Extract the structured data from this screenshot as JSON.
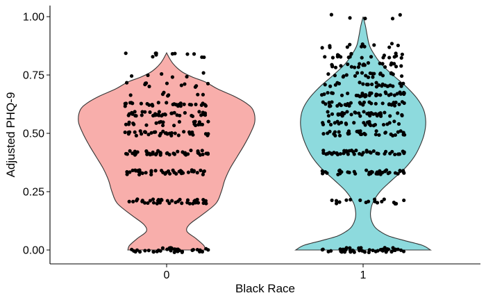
{
  "chart_data": {
    "type": "violin",
    "title": "",
    "xlabel": "Black Race",
    "ylabel": "Adjusted PHQ-9",
    "ylim": [
      0,
      1
    ],
    "yticks": [
      "0.00",
      "0.25",
      "0.50",
      "0.75",
      "1.00"
    ],
    "ytick_values": [
      0,
      0.25,
      0.5,
      0.75,
      1.0
    ],
    "grid": false,
    "legend": "none",
    "groups": [
      {
        "category": "0",
        "color": "#f8aeab",
        "y_max": 0.845,
        "width_profile": [
          [
            0.0,
            0.44
          ],
          [
            0.02,
            0.42
          ],
          [
            0.05,
            0.33
          ],
          [
            0.08,
            0.23
          ],
          [
            0.11,
            0.26
          ],
          [
            0.15,
            0.4
          ],
          [
            0.2,
            0.56
          ],
          [
            0.25,
            0.62
          ],
          [
            0.3,
            0.66
          ],
          [
            0.35,
            0.72
          ],
          [
            0.4,
            0.8
          ],
          [
            0.45,
            0.88
          ],
          [
            0.5,
            0.95
          ],
          [
            0.55,
            1.0
          ],
          [
            0.6,
            0.98
          ],
          [
            0.63,
            0.9
          ],
          [
            0.66,
            0.76
          ],
          [
            0.69,
            0.58
          ],
          [
            0.72,
            0.44
          ],
          [
            0.74,
            0.3
          ],
          [
            0.76,
            0.19
          ],
          [
            0.78,
            0.12
          ],
          [
            0.8,
            0.07
          ],
          [
            0.82,
            0.035
          ],
          [
            0.845,
            0.0
          ]
        ],
        "jitter_levels": [
          {
            "y": 0.0,
            "n": 40
          },
          {
            "y": 0.208,
            "n": 38
          },
          {
            "y": 0.333,
            "n": 44
          },
          {
            "y": 0.417,
            "n": 44
          },
          {
            "y": 0.5,
            "n": 34
          },
          {
            "y": 0.542,
            "n": 22
          },
          {
            "y": 0.583,
            "n": 36
          },
          {
            "y": 0.625,
            "n": 28
          },
          {
            "y": 0.667,
            "n": 7
          },
          {
            "y": 0.708,
            "n": 12
          },
          {
            "y": 0.75,
            "n": 6
          },
          {
            "y": 0.833,
            "n": 6
          },
          {
            "y": 0.845,
            "n": 5
          }
        ]
      },
      {
        "category": "1",
        "color": "#8ddadd",
        "y_max": 1.0,
        "width_profile": [
          [
            0.0,
            1.0
          ],
          [
            0.02,
            0.88
          ],
          [
            0.04,
            0.62
          ],
          [
            0.06,
            0.38
          ],
          [
            0.08,
            0.25
          ],
          [
            0.1,
            0.17
          ],
          [
            0.13,
            0.12
          ],
          [
            0.16,
            0.11
          ],
          [
            0.2,
            0.14
          ],
          [
            0.25,
            0.25
          ],
          [
            0.3,
            0.43
          ],
          [
            0.35,
            0.62
          ],
          [
            0.4,
            0.76
          ],
          [
            0.45,
            0.85
          ],
          [
            0.5,
            0.91
          ],
          [
            0.55,
            0.93
          ],
          [
            0.6,
            0.9
          ],
          [
            0.65,
            0.8
          ],
          [
            0.7,
            0.64
          ],
          [
            0.75,
            0.44
          ],
          [
            0.8,
            0.26
          ],
          [
            0.85,
            0.14
          ],
          [
            0.88,
            0.09
          ],
          [
            0.92,
            0.06
          ],
          [
            0.96,
            0.035
          ],
          [
            1.0,
            0.0
          ]
        ],
        "jitter_levels": [
          {
            "y": 0.0,
            "n": 48
          },
          {
            "y": 0.208,
            "n": 18
          },
          {
            "y": 0.333,
            "n": 38
          },
          {
            "y": 0.417,
            "n": 42
          },
          {
            "y": 0.5,
            "n": 34
          },
          {
            "y": 0.542,
            "n": 26
          },
          {
            "y": 0.583,
            "n": 36
          },
          {
            "y": 0.625,
            "n": 34
          },
          {
            "y": 0.667,
            "n": 34
          },
          {
            "y": 0.708,
            "n": 24
          },
          {
            "y": 0.75,
            "n": 22
          },
          {
            "y": 0.792,
            "n": 22
          },
          {
            "y": 0.833,
            "n": 20
          },
          {
            "y": 0.875,
            "n": 12
          },
          {
            "y": 1.0,
            "n": 5
          }
        ]
      }
    ]
  }
}
